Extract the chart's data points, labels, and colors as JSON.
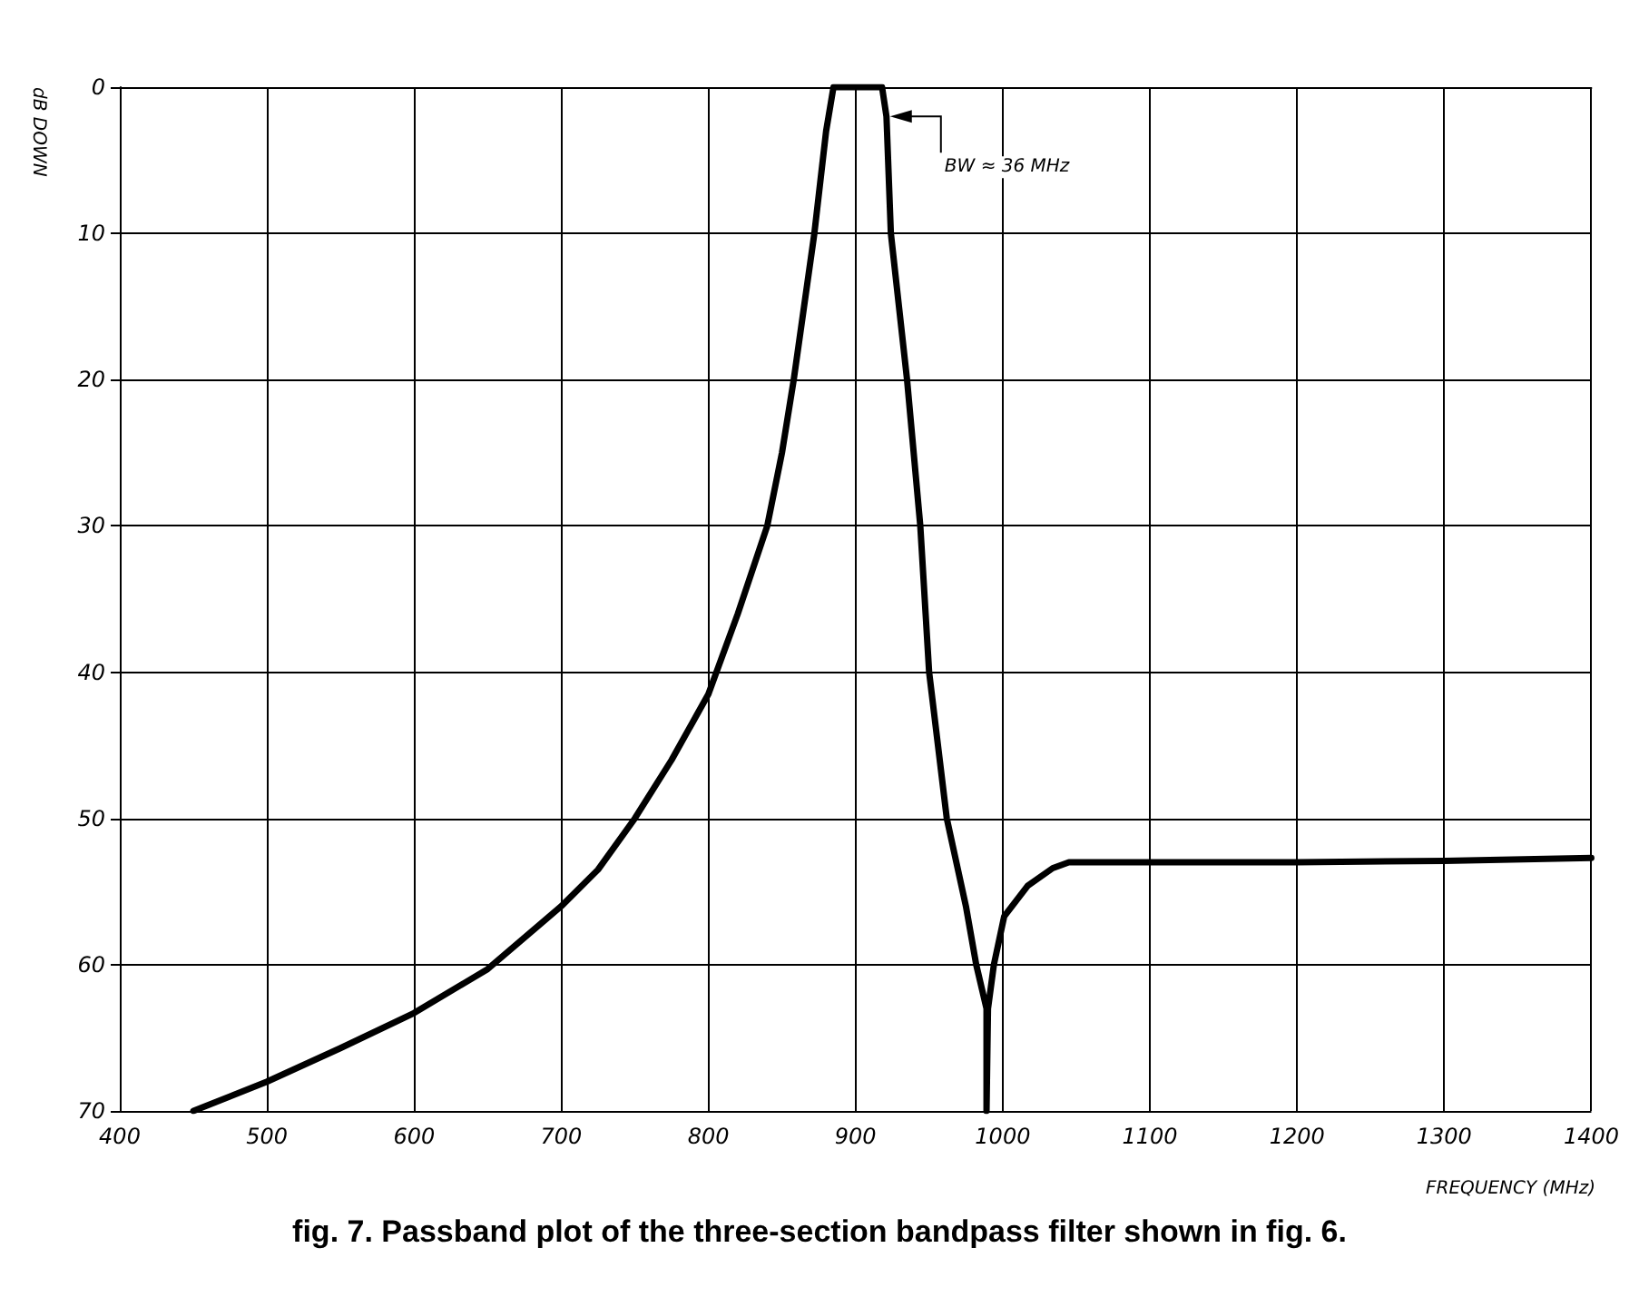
{
  "chart_data": {
    "type": "line",
    "title": "fig. 7. Passband plot of the three-section bandpass filter shown in fig. 6.",
    "xlabel": "FREQUENCY (MHz)",
    "ylabel": "dB DOWN",
    "series": [
      {
        "color": "#000000",
        "x": [
          450,
          500,
          550,
          600,
          650,
          700,
          725,
          750,
          775,
          800,
          820,
          840,
          850,
          858,
          865,
          872,
          880,
          885,
          918,
          921,
          924,
          935,
          944,
          950,
          962,
          975,
          982,
          989,
          989,
          990,
          994,
          1001,
          1017,
          1034,
          1045,
          1100,
          1200,
          1300,
          1400
        ],
        "values": [
          70,
          68,
          65.7,
          63.3,
          60.3,
          56,
          53.5,
          50,
          46,
          41.5,
          36,
          30,
          25,
          20,
          15,
          10,
          3,
          0,
          0,
          2,
          10,
          20,
          30,
          40,
          50,
          56,
          60,
          63,
          70,
          63,
          60,
          56.7,
          54.6,
          53.4,
          53,
          53,
          53,
          52.9,
          52.7
        ]
      }
    ],
    "annotations": [
      {
        "text": "BW ≈ 36 MHz",
        "x": 921,
        "y": 2
      }
    ],
    "xlim": [
      400,
      1400
    ],
    "xticks": [
      400,
      500,
      600,
      700,
      800,
      900,
      1000,
      1100,
      1200,
      1300,
      1400
    ],
    "ylim": [
      70,
      0
    ],
    "yticks": [
      0,
      10,
      20,
      30,
      40,
      50,
      60,
      70
    ],
    "grid": true,
    "marker": "none",
    "line_style": "solid"
  }
}
